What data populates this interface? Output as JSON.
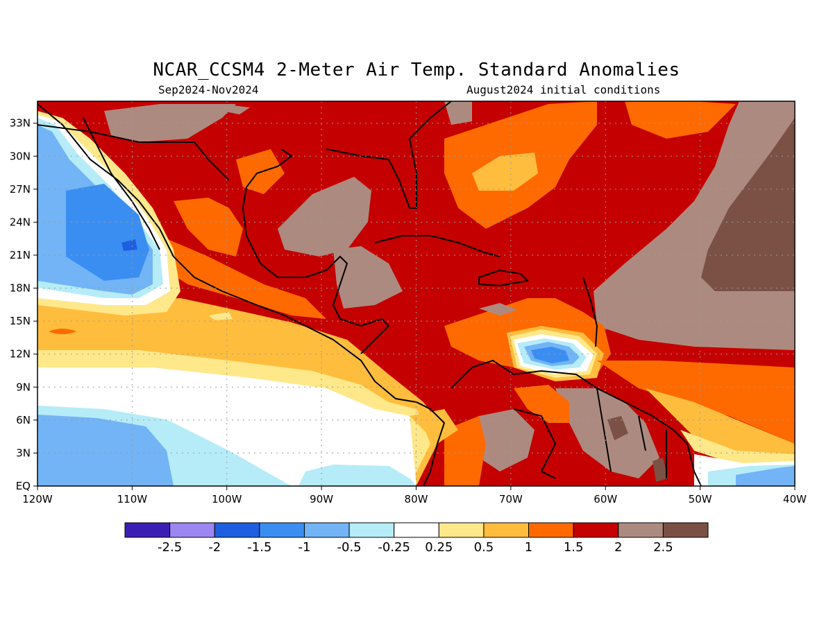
{
  "title": "NCAR_CCSM4 2-Meter Air Temp. Standard Anomalies",
  "subtitle_left": "Sep2024-Nov2024",
  "subtitle_right": "August2024 initial conditions",
  "map": {
    "lon_range": [
      -120,
      -40
    ],
    "lat_range": [
      0,
      35
    ],
    "lon_ticks": [
      {
        "value": -120,
        "label": "120W"
      },
      {
        "value": -110,
        "label": "110W"
      },
      {
        "value": -100,
        "label": "100W"
      },
      {
        "value": -90,
        "label": "90W"
      },
      {
        "value": -80,
        "label": "80W"
      },
      {
        "value": -70,
        "label": "70W"
      },
      {
        "value": -60,
        "label": "60W"
      },
      {
        "value": -50,
        "label": "50W"
      },
      {
        "value": -40,
        "label": "40W"
      }
    ],
    "lat_ticks": [
      {
        "value": 0,
        "label": "EQ"
      },
      {
        "value": 3,
        "label": "3N"
      },
      {
        "value": 6,
        "label": "6N"
      },
      {
        "value": 9,
        "label": "9N"
      },
      {
        "value": 12,
        "label": "12N"
      },
      {
        "value": 15,
        "label": "15N"
      },
      {
        "value": 18,
        "label": "18N"
      },
      {
        "value": 21,
        "label": "21N"
      },
      {
        "value": 24,
        "label": "24N"
      },
      {
        "value": 27,
        "label": "27N"
      },
      {
        "value": 30,
        "label": "30N"
      },
      {
        "value": 33,
        "label": "33N"
      }
    ],
    "grid": true
  },
  "legend": {
    "colors": [
      "#3b1fb5",
      "#9b86f2",
      "#1d5fe0",
      "#3a8ef2",
      "#72b4f6",
      "#b5ecf8",
      "#ffffff",
      "#ffe88a",
      "#ffbd3e",
      "#ff6a00",
      "#c50000",
      "#ad8a80",
      "#7a5144"
    ],
    "labels": [
      "-2.5",
      "-2",
      "-1.5",
      "-1",
      "-0.5",
      "-0.25",
      "0.25",
      "0.5",
      "1",
      "1.5",
      "2",
      "2.5"
    ]
  }
}
